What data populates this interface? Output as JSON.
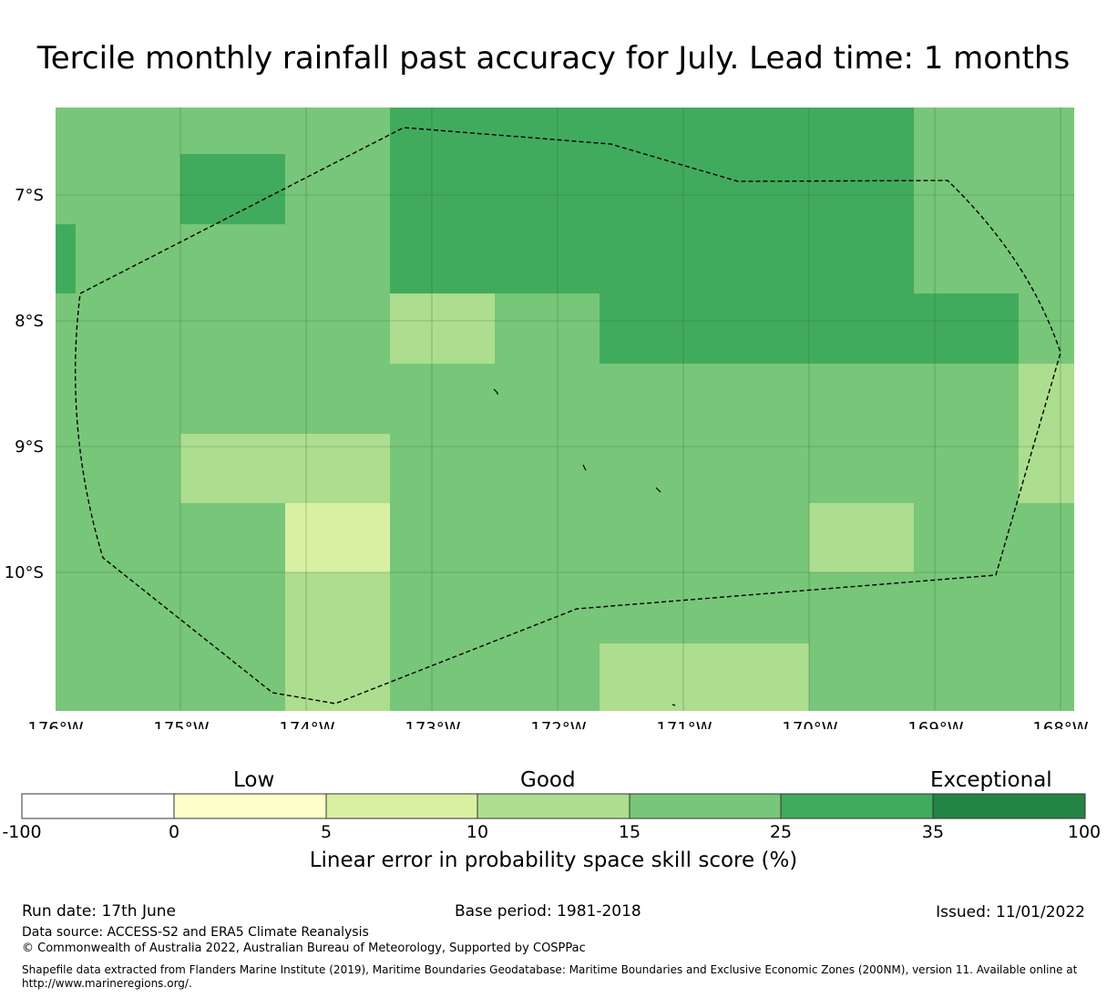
{
  "title": "Tercile monthly rainfall past accuracy for July. Lead time: 1 months",
  "map": {
    "lon_range": [
      -176,
      -167.87
    ],
    "lat_range": [
      -6.3,
      -11.1
    ],
    "x_ticks": [
      "176°W",
      "175°W",
      "174°W",
      "173°W",
      "172°W",
      "171°W",
      "170°W",
      "169°W",
      "168°W"
    ],
    "y_ticks": [
      "7°S",
      "8°S",
      "9°S",
      "10°S"
    ],
    "gridlines": true,
    "eez_boundary": "dashed black"
  },
  "colorbar": {
    "headings": [
      "Low",
      "Good",
      "Exceptional"
    ],
    "tick_labels": [
      "-100",
      "0",
      "5",
      "10",
      "15",
      "25",
      "35",
      "100"
    ],
    "bins": [
      {
        "range": "-100 to 0",
        "color": "#ffffff"
      },
      {
        "range": "0 to 5",
        "color": "#ffffcc"
      },
      {
        "range": "5 to 10",
        "color": "#d9f0a3"
      },
      {
        "range": "10 to 15",
        "color": "#addd8e"
      },
      {
        "range": "15 to 25",
        "color": "#78c679"
      },
      {
        "range": "25 to 35",
        "color": "#41ab5d"
      },
      {
        "range": "35 to 100",
        "color": "#238443"
      }
    ],
    "label": "Linear error in probability space skill score (%)"
  },
  "footer": {
    "run_date": "Run date: 17th June",
    "base_period": "Base period: 1981-2018",
    "issued": "Issued: 11/01/2022",
    "data_source": "Data source: ACCESS-S2 and ERA5 Climate Reanalysis",
    "copyright": "© Commonwealth of Australia 2022, Australian Bureau of Meteorology, Supported by COSPPac",
    "shapefile_line1": "Shapefile data extracted from Flanders Marine Institute (2019), Maritime Boundaries Geodatabase: Maritime Boundaries and Exclusive Economic Zones (200NM), version 11. Available online at",
    "shapefile_line2": "http://www.marineregions.org/."
  }
}
